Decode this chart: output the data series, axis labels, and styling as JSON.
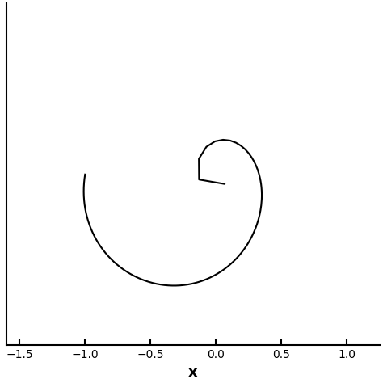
{
  "title": "",
  "xlabel": "x",
  "ylabel": "",
  "xlim": [
    -1.6,
    1.25
  ],
  "ylim": [
    -1.05,
    1.05
  ],
  "xticks": [
    -1.5,
    -1.0,
    -0.5,
    0.0,
    0.5,
    1.0
  ],
  "background_color": "#ffffff",
  "line_color": "#000000",
  "line_width": 1.5,
  "figsize": [
    4.74,
    4.74
  ],
  "dpi": 100
}
